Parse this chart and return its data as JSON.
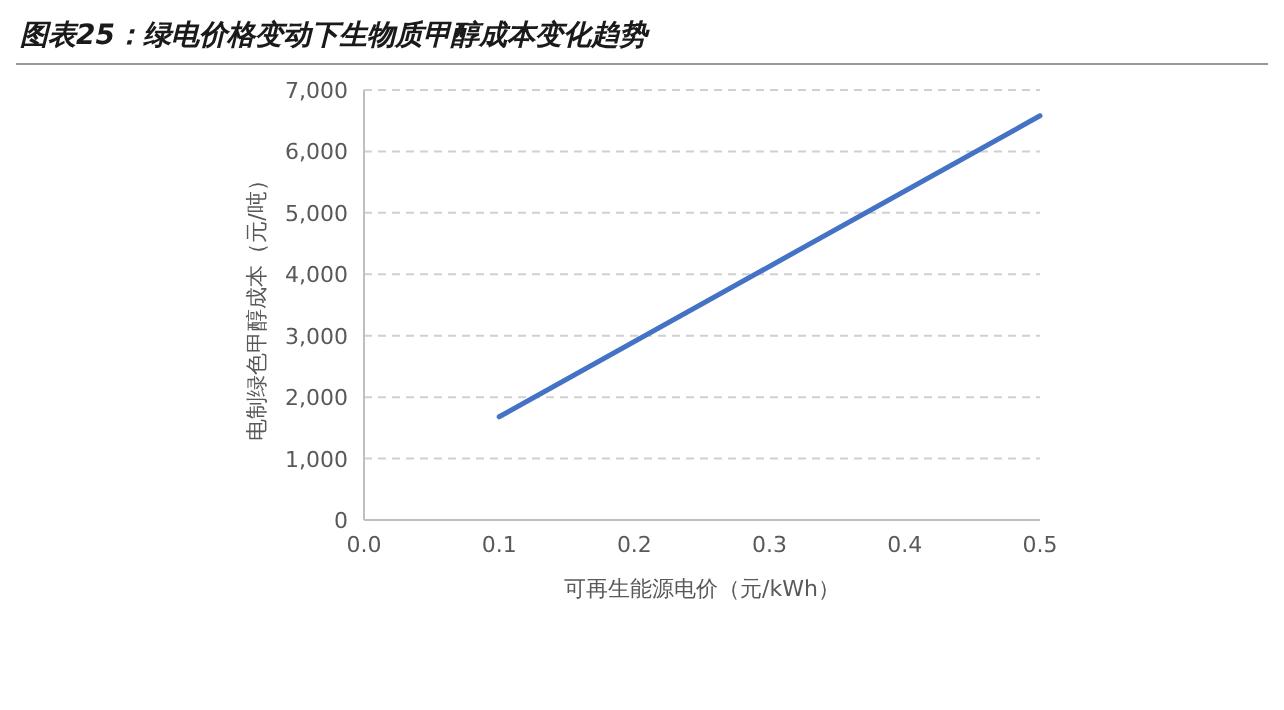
{
  "chart_data": {
    "type": "line",
    "title": "图表25：绿电价格变动下生物质甲醇成本变化趋势",
    "xlabel": "可再生能源电价（元/kWh）",
    "ylabel": "电制绿色甲醇成本（元/吨）",
    "x": [
      0.1,
      0.5
    ],
    "series": [
      {
        "color": "#4472c4",
        "values": [
          1680,
          6580
        ]
      }
    ],
    "xlim": [
      0,
      0.5
    ],
    "xticks": [
      {
        "value": 0,
        "label": "0.0"
      },
      0.1,
      0.2,
      0.3,
      0.4,
      0.5
    ],
    "ylim": [
      0,
      7000
    ],
    "yticks": [
      0,
      {
        "value": 1000,
        "label": "1,000"
      },
      {
        "value": 2000,
        "label": "2,000"
      },
      {
        "value": 3000,
        "label": "3,000"
      },
      {
        "value": 4000,
        "label": "4,000"
      },
      {
        "value": 5000,
        "label": "5,000"
      },
      {
        "value": 6000,
        "label": "6,000"
      },
      {
        "value": 7000,
        "label": "7,000"
      }
    ],
    "grid": "y",
    "marker": "none",
    "line_style": "solid"
  }
}
